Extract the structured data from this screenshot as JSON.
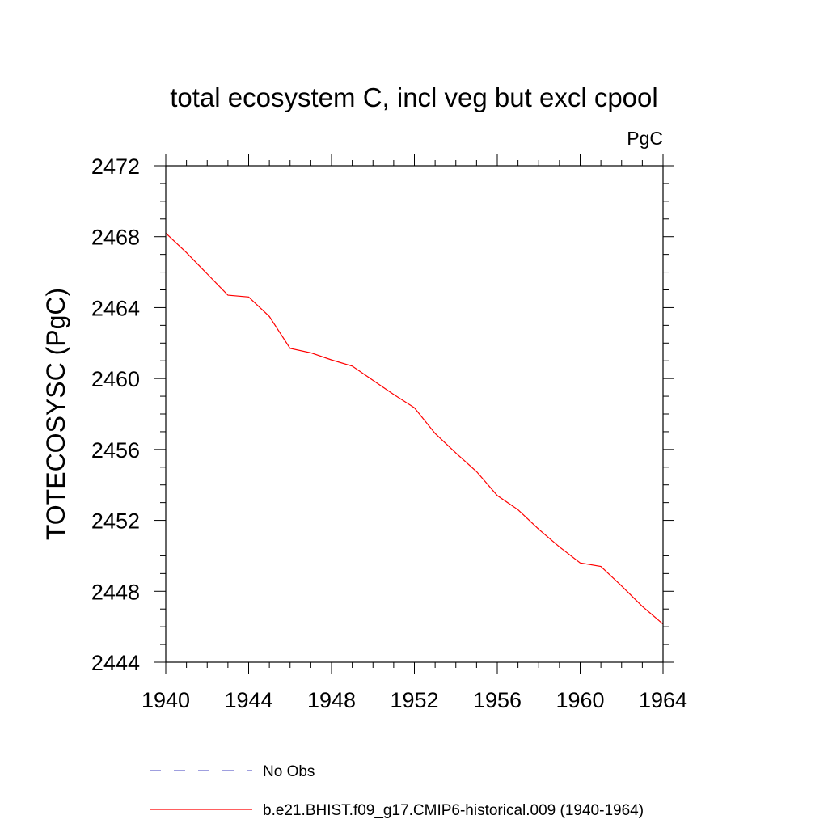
{
  "chart_data": {
    "type": "line",
    "title": "total ecosystem C, incl veg but excl cpool",
    "units_label": "PgC",
    "xlabel": "",
    "ylabel": "TOTECOSYSC  (PgC)",
    "xlim": [
      1940,
      1964
    ],
    "ylim": [
      2444,
      2472
    ],
    "x_ticks": [
      1940,
      1944,
      1948,
      1952,
      1956,
      1960,
      1964
    ],
    "y_ticks": [
      2444,
      2448,
      2452,
      2456,
      2460,
      2464,
      2468,
      2472
    ],
    "grid": false,
    "legend_position": "bottom",
    "series": [
      {
        "name": "No Obs",
        "color": "#6666cc",
        "dash": "dashed",
        "x": [],
        "y": []
      },
      {
        "name": "b.e21.BHIST.f09_g17.CMIP6-historical.009 (1940-1964)",
        "color": "#ff0000",
        "dash": "solid",
        "x": [
          1940,
          1941,
          1942,
          1943,
          1944,
          1945,
          1946,
          1947,
          1948,
          1949,
          1950,
          1951,
          1952,
          1953,
          1954,
          1955,
          1956,
          1957,
          1958,
          1959,
          1960,
          1961,
          1962,
          1963,
          1964
        ],
        "y": [
          2468.2,
          2467.1,
          2465.9,
          2464.7,
          2464.6,
          2463.5,
          2461.7,
          2461.45,
          2461.05,
          2460.7,
          2459.9,
          2459.1,
          2458.35,
          2456.9,
          2455.8,
          2454.75,
          2453.4,
          2452.6,
          2451.5,
          2450.5,
          2449.6,
          2449.4,
          2448.3,
          2447.15,
          2446.15
        ]
      }
    ]
  }
}
